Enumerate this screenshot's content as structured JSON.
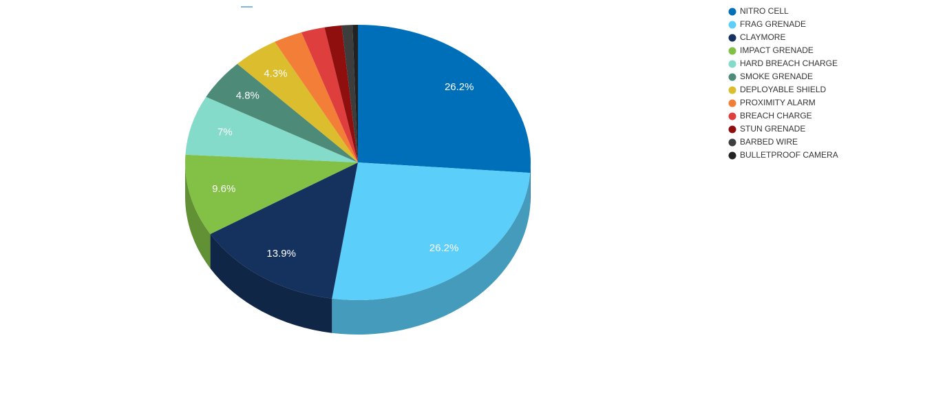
{
  "chart_data": {
    "type": "pie",
    "categories": [
      "NITRO CELL",
      "FRAG GRENADE",
      "CLAYMORE",
      "IMPACT GRENADE",
      "HARD BREACH CHARGE",
      "SMOKE GRENADE",
      "DEPLOYABLE SHIELD",
      "PROXIMITY ALARM",
      "BREACH CHARGE",
      "STUN GRENADE",
      "BARBED WIRE",
      "BULLETPROOF CAMERA"
    ],
    "values": [
      26.2,
      26.2,
      13.9,
      9.6,
      7,
      4.8,
      4.3,
      2.7,
      2.2,
      1.6,
      1.0,
      0.5
    ],
    "value_labels": [
      "26.2%",
      "26.2%",
      "13.9%",
      "9.6%",
      "7%",
      "4.8%",
      "4.3%",
      null,
      null,
      null,
      null,
      null
    ],
    "colors": [
      "#006fba",
      "#5bcefa",
      "#15325e",
      "#82c046",
      "#85dbc9",
      "#4d8a78",
      "#dbbd2e",
      "#f37e38",
      "#de3e3e",
      "#8f0f0f",
      "#3d3d3d",
      "#222222"
    ],
    "legend": "top-right"
  }
}
